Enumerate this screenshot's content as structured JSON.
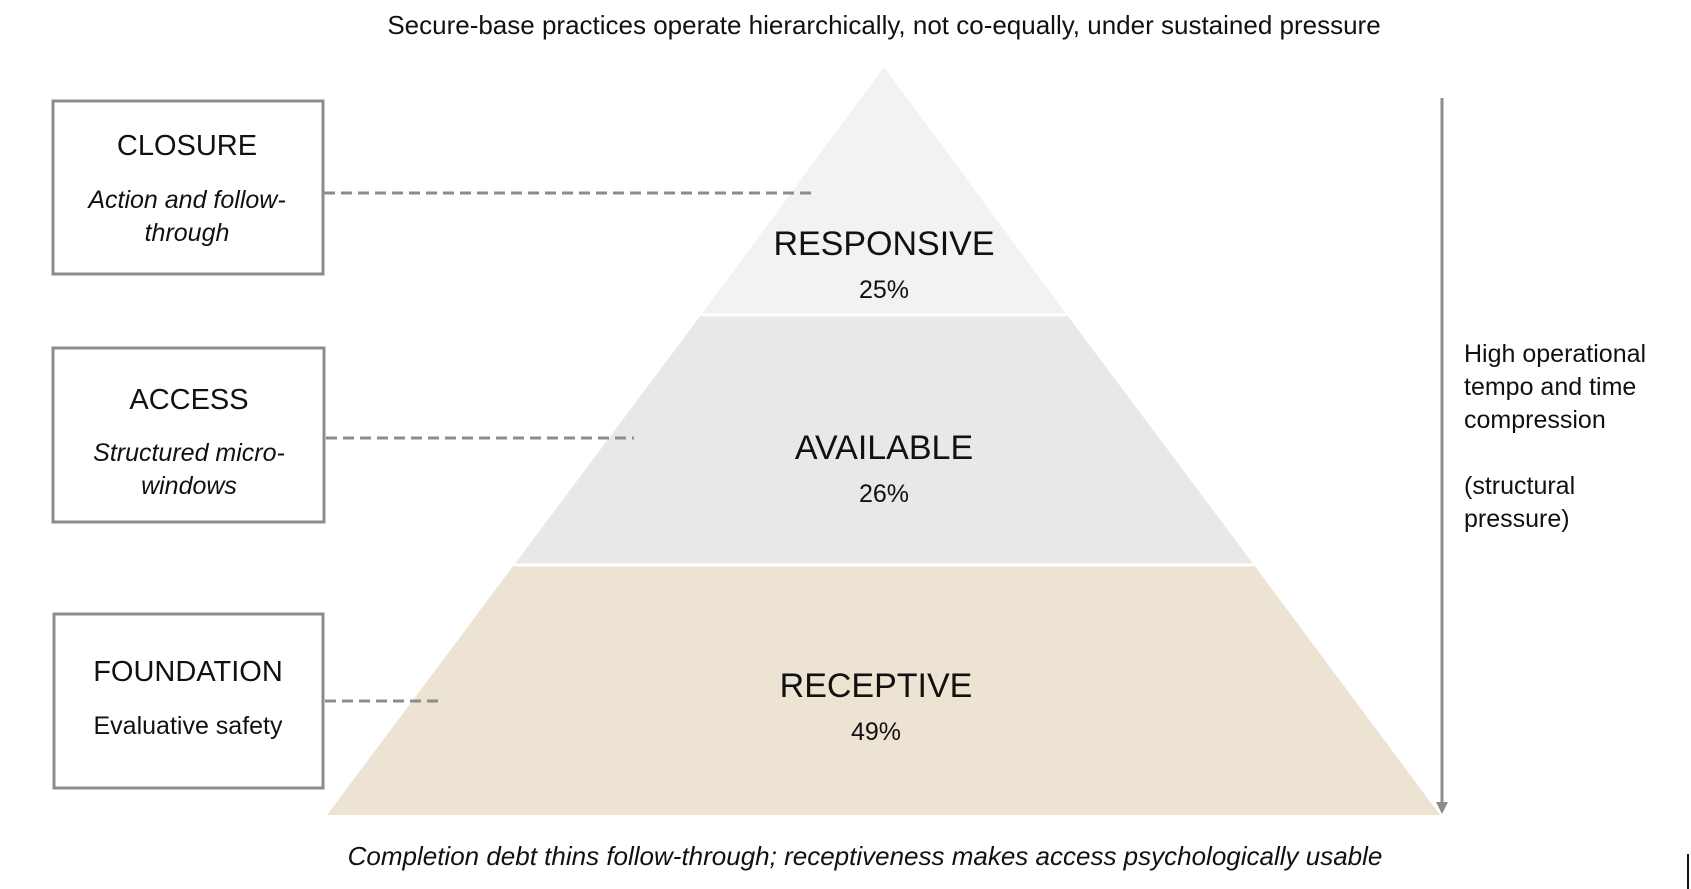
{
  "title": "Secure-base practices operate hierarchically, not co-equally, under sustained pressure",
  "pyramid": {
    "layers": [
      {
        "name": "RESPONSIVE",
        "percent": "25%",
        "color": "#f2f2f2"
      },
      {
        "name": "AVAILABLE",
        "percent": "26%",
        "color": "#e8e8e8"
      },
      {
        "name": "RECEPTIVE",
        "percent": "49%",
        "color": "#ece3d2"
      }
    ]
  },
  "boxes": [
    {
      "title": "CLOSURE",
      "subtitle_lines": [
        "Action and follow-",
        "through"
      ],
      "subtitle_style": "italic"
    },
    {
      "title": "ACCESS",
      "subtitle_lines": [
        "Structured micro-",
        "windows"
      ],
      "subtitle_style": "italic"
    },
    {
      "title": "FOUNDATION",
      "subtitle_lines": [
        "Evaluative safety"
      ],
      "subtitle_style": "normal"
    }
  ],
  "pressure": {
    "lines": [
      "High operational",
      "tempo and time",
      "compression",
      "",
      "(structural",
      "pressure)"
    ],
    "color": "#8c8c8c"
  },
  "caption": "Completion debt thins follow-through; receptiveness makes access psychologically usable"
}
